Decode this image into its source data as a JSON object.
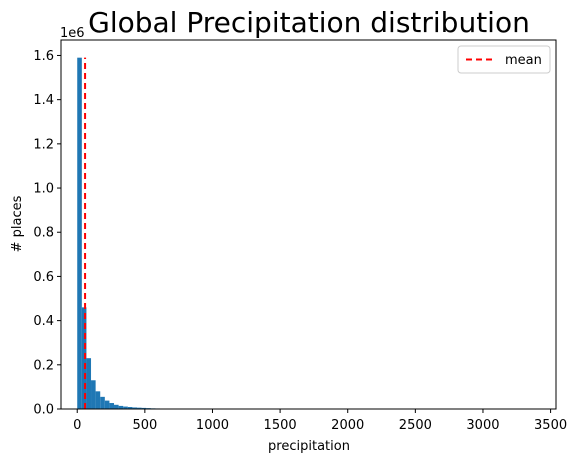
{
  "chart_data": {
    "type": "bar",
    "title": "Global Precipitation distribution",
    "xlabel": "precipitation",
    "ylabel": "# places",
    "y_offset_label": "1e6",
    "xlim": [
      -120,
      3540
    ],
    "ylim": [
      0,
      1.67
    ],
    "xticks": [
      0,
      500,
      1000,
      1500,
      2000,
      2500,
      3000,
      3500
    ],
    "yticks": [
      0.0,
      0.2,
      0.4,
      0.6,
      0.8,
      1.0,
      1.2,
      1.4,
      1.6
    ],
    "ytick_labels": [
      "0.0",
      "0.2",
      "0.4",
      "0.6",
      "0.8",
      "1.0",
      "1.2",
      "1.4",
      "1.6"
    ],
    "bin_width": 34.0,
    "bin_start": 0,
    "values_millions": [
      1.59,
      0.46,
      0.23,
      0.13,
      0.08,
      0.055,
      0.038,
      0.027,
      0.019,
      0.014,
      0.011,
      0.009,
      0.007,
      0.006,
      0.005,
      0.004,
      0.003,
      0.0025,
      0.002,
      0.0015,
      0.0012,
      0.001,
      0.0008,
      0.0006,
      0.0005,
      0.0004,
      0.0003,
      0.0003,
      0.0002,
      0.0002
    ],
    "bar_color": "#1f77b4",
    "mean": {
      "x": 58,
      "color": "#ff0000",
      "style": "dashed",
      "label": "mean"
    },
    "legend": {
      "position": "top-right",
      "entries": [
        "mean"
      ]
    },
    "grid": false
  }
}
